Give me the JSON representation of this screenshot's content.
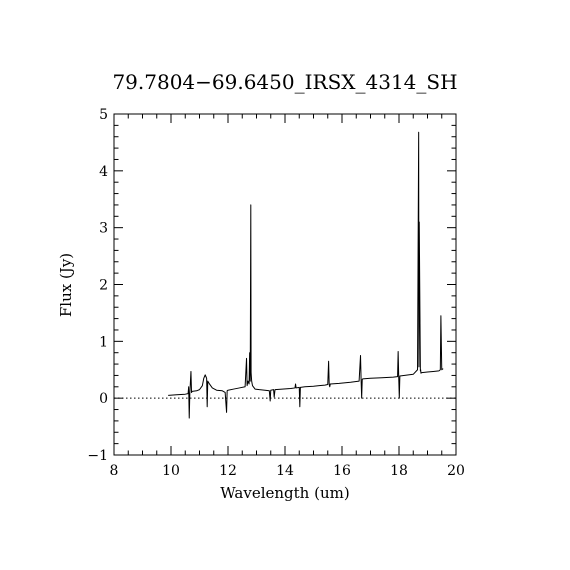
{
  "chart_data": {
    "type": "line",
    "title": "79.7804−69.6450_IRSX_4314_SH",
    "xlabel": "Wavelength (um)",
    "ylabel": "Flux (Jy)",
    "xlim": [
      8,
      20
    ],
    "ylim": [
      -1,
      5
    ],
    "xticks": [
      8,
      10,
      12,
      14,
      16,
      18,
      20
    ],
    "yticks": [
      -1,
      0,
      1,
      2,
      3,
      4,
      5
    ],
    "xtick_labels": [
      "8",
      "10",
      "12",
      "14",
      "16",
      "18",
      "20"
    ],
    "ytick_labels": [
      "−1",
      "0",
      "1",
      "2",
      "3",
      "4",
      "5"
    ],
    "zero_line": 0,
    "series": [
      {
        "x": [
          9.9,
          10.2,
          10.5,
          10.6,
          10.62,
          10.64,
          10.66,
          10.7,
          10.72,
          10.74,
          10.9,
          11.0,
          11.1,
          11.15,
          11.2,
          11.25,
          11.27,
          11.29,
          11.35,
          11.45,
          11.6,
          11.8,
          11.9,
          11.95,
          11.97,
          12.0,
          12.2,
          12.4,
          12.6,
          12.65,
          12.67,
          12.7,
          12.74,
          12.76,
          12.78,
          12.8,
          12.81,
          12.83,
          12.86,
          12.95,
          13.1,
          13.3,
          13.45,
          13.48,
          13.5,
          13.6,
          13.62,
          13.65,
          13.9,
          14.2,
          14.35,
          14.37,
          14.39,
          14.5,
          14.52,
          14.54,
          14.7,
          15.0,
          15.2,
          15.4,
          15.5,
          15.53,
          15.55,
          15.57,
          15.59,
          15.9,
          16.3,
          16.6,
          16.65,
          16.67,
          16.69,
          16.71,
          16.73,
          17.0,
          17.4,
          17.8,
          17.95,
          17.97,
          17.99,
          18.01,
          18.03,
          18.2,
          18.5,
          18.65,
          18.69,
          18.7,
          18.71,
          18.75,
          18.76,
          18.77,
          18.8,
          19.0,
          19.2,
          19.4,
          19.45,
          19.47,
          19.5,
          19.55
        ],
        "y": [
          0.05,
          0.06,
          0.07,
          0.08,
          0.2,
          -0.35,
          0.08,
          0.47,
          0.1,
          0.12,
          0.13,
          0.15,
          0.22,
          0.35,
          0.41,
          0.35,
          -0.15,
          0.3,
          0.25,
          0.18,
          0.14,
          0.13,
          0.1,
          -0.25,
          0.13,
          0.14,
          0.16,
          0.18,
          0.2,
          0.7,
          0.22,
          0.3,
          0.25,
          0.8,
          0.3,
          3.4,
          0.45,
          0.3,
          0.22,
          0.16,
          0.15,
          0.14,
          0.13,
          -0.05,
          0.14,
          0.15,
          0.02,
          0.15,
          0.16,
          0.17,
          0.18,
          0.25,
          0.18,
          0.19,
          -0.15,
          0.19,
          0.2,
          0.21,
          0.22,
          0.23,
          0.24,
          0.65,
          0.24,
          0.2,
          0.25,
          0.26,
          0.28,
          0.3,
          0.75,
          0.32,
          0.0,
          0.33,
          0.34,
          0.35,
          0.36,
          0.37,
          0.38,
          0.82,
          0.38,
          0.0,
          0.39,
          0.4,
          0.42,
          0.5,
          4.68,
          0.55,
          3.1,
          0.48,
          0.5,
          0.44,
          0.45,
          0.46,
          0.47,
          0.48,
          0.5,
          1.45,
          0.5,
          0.52
        ]
      }
    ]
  }
}
